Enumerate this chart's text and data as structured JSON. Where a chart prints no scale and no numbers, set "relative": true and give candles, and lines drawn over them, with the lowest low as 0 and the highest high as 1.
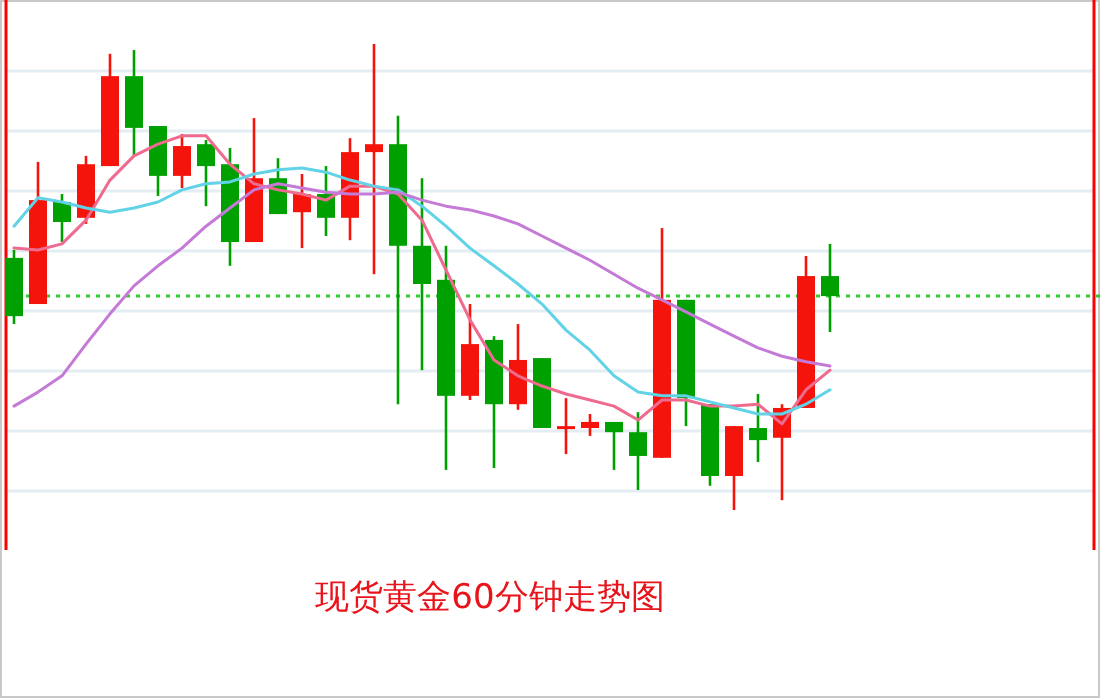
{
  "chart_data": {
    "type": "candlestick",
    "title": "现货黄金60分钟走势图",
    "relative": true,
    "grid": "y",
    "marker": "none",
    "categories": [
      null,
      null,
      null,
      null,
      null,
      null,
      null,
      null,
      null,
      null,
      null,
      null,
      null,
      null,
      null,
      null,
      null,
      null,
      null,
      null,
      null,
      null,
      null,
      null,
      null,
      null,
      null,
      null,
      null,
      null,
      null,
      null,
      null,
      null,
      null
    ],
    "ohlc": [
      [
        0.541,
        0.558,
        0.399,
        0.416
      ],
      [
        0.442,
        0.747,
        0.442,
        0.665
      ],
      [
        0.661,
        0.678,
        0.575,
        0.618
      ],
      [
        0.627,
        0.76,
        0.614,
        0.742
      ],
      [
        0.738,
        0.979,
        0.738,
        0.931
      ],
      [
        0.931,
        0.987,
        0.76,
        0.82
      ],
      [
        0.824,
        0.824,
        0.674,
        0.717
      ],
      [
        0.717,
        0.807,
        0.691,
        0.781
      ],
      [
        0.785,
        0.794,
        0.652,
        0.738
      ],
      [
        0.742,
        0.777,
        0.524,
        0.575
      ],
      [
        0.575,
        0.841,
        0.575,
        0.712
      ],
      [
        0.712,
        0.755,
        0.635,
        0.635
      ],
      [
        0.639,
        0.721,
        0.562,
        0.678
      ],
      [
        0.678,
        0.738,
        0.588,
        0.627
      ],
      [
        0.627,
        0.798,
        0.579,
        0.768
      ],
      [
        0.768,
        1,
        0.506,
        0.785
      ],
      [
        0.785,
        0.846,
        0.227,
        0.567
      ],
      [
        0.567,
        0.712,
        0.3,
        0.485
      ],
      [
        0.494,
        0.567,
        0.086,
        0.245
      ],
      [
        0.245,
        0.442,
        0.236,
        0.356
      ],
      [
        0.365,
        0.373,
        0.09,
        0.227
      ],
      [
        0.227,
        0.399,
        0.215,
        0.322
      ],
      [
        0.326,
        0.326,
        0.176,
        0.176
      ],
      [
        0.176,
        0.24,
        0.12,
        0.18
      ],
      [
        0.176,
        0.206,
        0.159,
        0.189
      ],
      [
        0.189,
        0.189,
        0.086,
        0.167
      ],
      [
        0.167,
        0.21,
        0.043,
        0.116
      ],
      [
        0.112,
        0.605,
        0.112,
        0.451
      ],
      [
        0.451,
        0.451,
        0.18,
        0.24
      ],
      [
        0.227,
        0.227,
        0.052,
        0.073
      ],
      [
        0.073,
        0.18,
        0,
        0.18
      ],
      [
        0.176,
        0.249,
        0.103,
        0.15
      ],
      [
        0.155,
        0.227,
        0.021,
        0.219
      ],
      [
        0.219,
        0.545,
        0.219,
        0.502
      ],
      [
        0.502,
        0.571,
        0.382,
        0.459
      ]
    ],
    "colors": [
      "#00a000",
      "#f5140c",
      "#00a000",
      "#f5140c",
      "#f5140c",
      "#00a000",
      "#00a000",
      "#f5140c",
      "#00a000",
      "#00a000",
      "#f5140c",
      "#00a000",
      "#f5140c",
      "#00a000",
      "#f5140c",
      "#f5140c",
      "#00a000",
      "#00a000",
      "#00a000",
      "#f5140c",
      "#00a000",
      "#f5140c",
      "#00a000",
      "#f5140c",
      "#f5140c",
      "#00a000",
      "#00a000",
      "#f5140c",
      "#00a000",
      "#00a000",
      "#f5140c",
      "#00a000",
      "#f5140c",
      "#f5140c",
      "#00a000"
    ],
    "series": [
      {
        "type": "line",
        "color": "#ee6a8e",
        "values": [
          0.562,
          0.558,
          0.571,
          0.622,
          0.708,
          0.76,
          0.785,
          0.803,
          0.803,
          0.742,
          0.7,
          0.687,
          0.678,
          0.665,
          0.695,
          0.695,
          0.678,
          0.622,
          0.515,
          0.408,
          0.322,
          0.288,
          0.266,
          0.249,
          0.236,
          0.223,
          0.193,
          0.236,
          0.236,
          0.223,
          0.223,
          0.227,
          0.185,
          0.258,
          0.3
        ]
      },
      {
        "type": "line",
        "color": "#62d2e6",
        "values": [
          0.609,
          0.67,
          0.661,
          0.648,
          0.639,
          0.648,
          0.661,
          0.687,
          0.7,
          0.704,
          0.721,
          0.73,
          0.734,
          0.725,
          0.708,
          0.695,
          0.687,
          0.652,
          0.609,
          0.562,
          0.524,
          0.485,
          0.442,
          0.386,
          0.343,
          0.288,
          0.253,
          0.245,
          0.245,
          0.232,
          0.219,
          0.206,
          0.206,
          0.227,
          0.258
        ]
      },
      {
        "type": "line",
        "color": "#c47ad6",
        "values": [
          0.223,
          0.253,
          0.288,
          0.356,
          0.421,
          0.481,
          0.524,
          0.562,
          0.609,
          0.648,
          0.687,
          0.7,
          0.691,
          0.682,
          0.678,
          0.678,
          0.682,
          0.665,
          0.652,
          0.644,
          0.631,
          0.614,
          0.588,
          0.562,
          0.536,
          0.506,
          0.476,
          0.451,
          0.425,
          0.399,
          0.373,
          0.348,
          0.33,
          0.318,
          0.309
        ]
      }
    ],
    "ref_lines": [
      {
        "axis": "y",
        "value": 0.459,
        "color": "#33cc33",
        "line_style": "dotted"
      }
    ]
  }
}
